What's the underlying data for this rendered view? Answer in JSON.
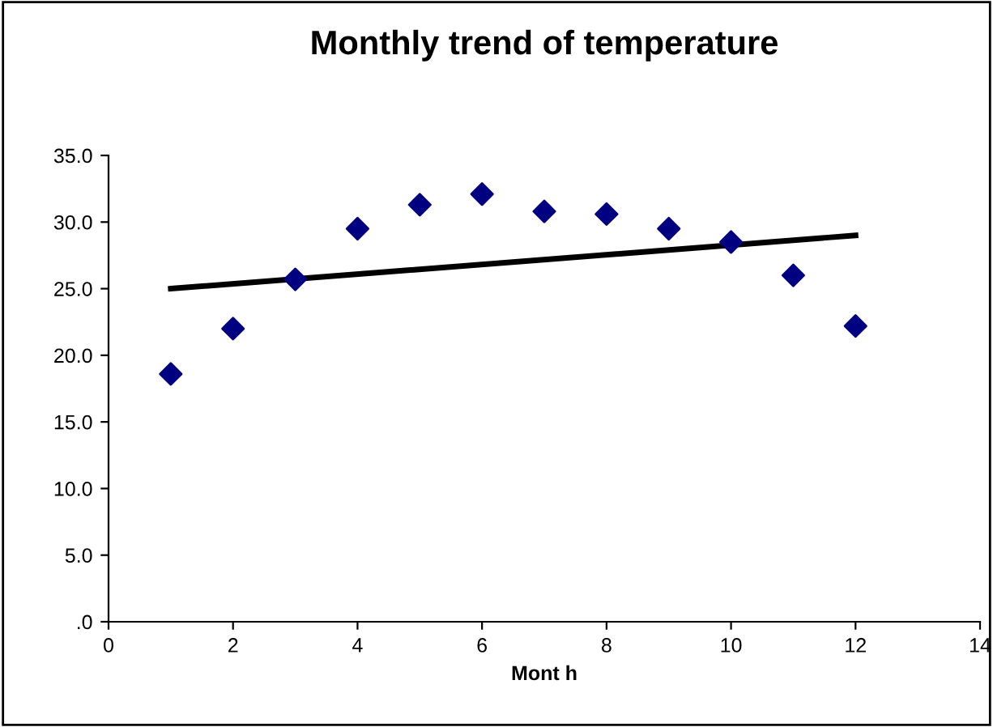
{
  "chart_data": {
    "type": "scatter",
    "title": "Monthly trend of temperature",
    "xlabel": "Mont h",
    "series": [
      {
        "color": "#000080",
        "marker": "diamond",
        "x": [
          1,
          2,
          3,
          4,
          5,
          6,
          7,
          8,
          9,
          10,
          11,
          12
        ],
        "values": [
          18.6,
          22.0,
          25.7,
          29.5,
          31.3,
          32.1,
          30.8,
          30.6,
          29.5,
          28.5,
          26.0,
          22.2
        ]
      },
      {
        "type": "line",
        "color": "#000000",
        "marker": "none",
        "x": [
          1,
          12
        ],
        "values": [
          25.0,
          29.0
        ]
      }
    ],
    "xlim": [
      0,
      14
    ],
    "xticks": [
      0,
      2,
      4,
      6,
      8,
      10,
      12,
      14
    ],
    "ylim": [
      0,
      35
    ],
    "yticks": [
      {
        "value": 0,
        "label": ".0"
      },
      {
        "value": 5,
        "label": "5.0"
      },
      {
        "value": 10,
        "label": "10.0"
      },
      {
        "value": 15,
        "label": "15.0"
      },
      {
        "value": 20,
        "label": "20.0"
      },
      {
        "value": 25,
        "label": "25.0"
      },
      {
        "value": 30,
        "label": "30.0"
      },
      {
        "value": 35,
        "label": "35.0"
      }
    ],
    "grid": false,
    "legend": false
  }
}
